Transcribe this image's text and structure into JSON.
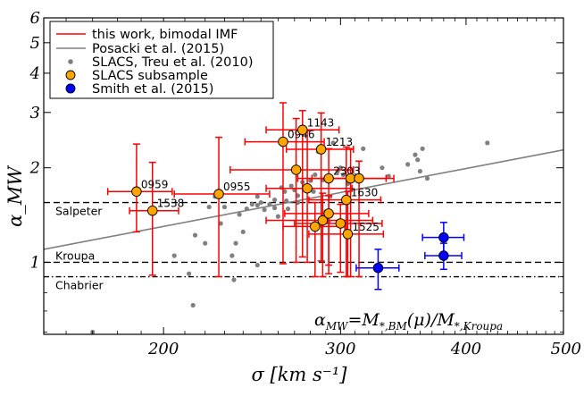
{
  "chart_data": {
    "type": "scatter",
    "x_scale": "log",
    "y_scale": "log",
    "xlim": [
      152,
      500
    ],
    "ylim": [
      0.59,
      6.0
    ],
    "xlabel": "σ [km s⁻¹]",
    "ylabel": "α_MW",
    "x_ticks": [
      200,
      300,
      400,
      500
    ],
    "y_ticks": [
      1,
      2,
      3,
      4,
      5,
      6
    ],
    "formula_main": "α",
    "formula_main_sub": "MW",
    "formula_eq": "=M",
    "formula_sub1": "*,BM",
    "formula_mid": "(μ)/M",
    "formula_sub2": "*,Kroupa",
    "reference_lines": [
      {
        "label": "Salpeter",
        "y": 1.55,
        "style": "dashed"
      },
      {
        "label": "Kroupa",
        "y": 1.0,
        "style": "dashed"
      },
      {
        "label": "Chabrier",
        "y": 0.9,
        "style": "dashdot"
      }
    ],
    "legend": [
      {
        "label": "this work, bimodal IMF",
        "kind": "line",
        "color": "#ff0000"
      },
      {
        "label": "Posacki et al. (2015)",
        "kind": "line",
        "color": "#808080"
      },
      {
        "label": "SLACS, Treu et al. (2010)",
        "kind": "small-dot",
        "color": "#808080"
      },
      {
        "label": "SLACS subsample",
        "kind": "circle",
        "color": "#ffa500"
      },
      {
        "label": "Smith et al. (2015)",
        "kind": "circle",
        "color": "#0000ff"
      }
    ],
    "posacki_line": {
      "x": [
        152,
        500
      ],
      "y": [
        1.1,
        2.28
      ]
    },
    "slacs_treu": [
      [
        170,
        0.6
      ],
      [
        214,
        0.73
      ],
      [
        205,
        1.05
      ],
      [
        215,
        1.22
      ],
      [
        220,
        1.15
      ],
      [
        222,
        1.5
      ],
      [
        225,
        1.62
      ],
      [
        228,
        1.33
      ],
      [
        230,
        1.5
      ],
      [
        234,
        1.05
      ],
      [
        236,
        1.15
      ],
      [
        238,
        1.42
      ],
      [
        240,
        1.25
      ],
      [
        242,
        1.48
      ],
      [
        245,
        1.53
      ],
      [
        248,
        1.52
      ],
      [
        248,
        1.62
      ],
      [
        250,
        1.55
      ],
      [
        252,
        1.47
      ],
      [
        255,
        1.53
      ],
      [
        258,
        1.58
      ],
      [
        258,
        1.49
      ],
      [
        260,
        1.4
      ],
      [
        262,
        1.73
      ],
      [
        264,
        1.68
      ],
      [
        265,
        1.57
      ],
      [
        266,
        1.48
      ],
      [
        268,
        1.75
      ],
      [
        270,
        1.7
      ],
      [
        272,
        1.55
      ],
      [
        272,
        1.63
      ],
      [
        275,
        1.8
      ],
      [
        278,
        1.75
      ],
      [
        280,
        1.82
      ],
      [
        282,
        1.68
      ],
      [
        283,
        1.9
      ],
      [
        285,
        2.25
      ],
      [
        288,
        1.83
      ],
      [
        290,
        1.45
      ],
      [
        292,
        1.35
      ],
      [
        293,
        1.62
      ],
      [
        295,
        2.4
      ],
      [
        298,
        1.95
      ],
      [
        300,
        2.0
      ],
      [
        302,
        1.9
      ],
      [
        305,
        1.78
      ],
      [
        310,
        1.85
      ],
      [
        316,
        2.3
      ],
      [
        330,
        2.0
      ],
      [
        335,
        1.88
      ],
      [
        350,
        2.05
      ],
      [
        356,
        2.2
      ],
      [
        358,
        2.12
      ],
      [
        360,
        1.95
      ],
      [
        362,
        2.3
      ],
      [
        366,
        1.85
      ],
      [
        420,
        2.4
      ],
      [
        248,
        0.98
      ],
      [
        212,
        0.92
      ],
      [
        235,
        0.88
      ]
    ],
    "this_work": [
      {
        "name": "0959",
        "x": 188,
        "y": 1.68,
        "xerr": [
          12,
          16
        ],
        "yerr": [
          0.43,
          0.7
        ]
      },
      {
        "name": "1538",
        "x": 195,
        "y": 1.46,
        "xerr": [
          10,
          12
        ],
        "yerr": [
          0.55,
          0.62
        ]
      },
      {
        "name": "0955",
        "x": 227,
        "y": 1.65,
        "xerr": [
          22,
          28
        ],
        "yerr": [
          0.75,
          0.85
        ]
      },
      {
        "name": "0946",
        "x": 263,
        "y": 2.42,
        "xerr": [
          22,
          26
        ],
        "yerr": [
          1.43,
          0.8
        ]
      },
      {
        "name": "1143",
        "x": 275,
        "y": 2.64,
        "xerr": [
          22,
          24
        ],
        "yerr": [
          1.6,
          0.4
        ]
      },
      {
        "name": "",
        "x": 271,
        "y": 1.97,
        "xerr": [
          38,
          38
        ],
        "yerr": [
          0.97,
          0.9
        ]
      },
      {
        "name": "",
        "x": 278,
        "y": 1.72,
        "xerr": [
          25,
          30
        ],
        "yerr": [
          0.72,
          0.9
        ]
      },
      {
        "name": "1213",
        "x": 287,
        "y": 2.29,
        "xerr": [
          22,
          22
        ],
        "yerr": [
          1.28,
          0.7
        ]
      },
      {
        "name": "2303",
        "x": 292,
        "y": 1.85,
        "xerr": [
          20,
          20
        ],
        "yerr": [
          0.93,
          0.45
        ]
      },
      {
        "name": "",
        "x": 307,
        "y": 1.85,
        "xerr": [
          26,
          26
        ],
        "yerr": [
          0.95,
          0.45
        ]
      },
      {
        "name": "",
        "x": 313,
        "y": 1.85,
        "xerr": [
          26,
          26
        ],
        "yerr": [
          0.95,
          0.25
        ]
      },
      {
        "name": "1630",
        "x": 304,
        "y": 1.58,
        "xerr": [
          25,
          25
        ],
        "yerr": [
          0.68,
          0.75
        ]
      },
      {
        "name": "1525",
        "x": 305,
        "y": 1.23,
        "xerr": [
          26,
          26
        ],
        "yerr": [
          0.33,
          0.45
        ]
      },
      {
        "name": "",
        "x": 288,
        "y": 1.36,
        "xerr": [
          35,
          35
        ],
        "yerr": [
          0.46,
          0.3
        ]
      },
      {
        "name": "",
        "x": 292,
        "y": 1.43,
        "xerr": [
          28,
          28
        ],
        "yerr": [
          0.45,
          0.2
        ]
      },
      {
        "name": "",
        "x": 300,
        "y": 1.33,
        "xerr": [
          30,
          30
        ],
        "yerr": [
          0.4,
          0.2
        ]
      },
      {
        "name": "",
        "x": 283,
        "y": 1.3,
        "xerr": [
          20,
          20
        ],
        "yerr": [
          0.4,
          0.25
        ]
      }
    ],
    "smith": [
      {
        "x": 327,
        "y": 0.96,
        "xerr": [
          16,
          16
        ],
        "yerr": [
          0.14,
          0.14
        ]
      },
      {
        "x": 380,
        "y": 1.2,
        "xerr": [
          18,
          18
        ],
        "yerr": [
          0.14,
          0.14
        ]
      },
      {
        "x": 380,
        "y": 1.05,
        "xerr": [
          16,
          16
        ],
        "yerr": [
          0.1,
          0.1
        ]
      }
    ]
  }
}
